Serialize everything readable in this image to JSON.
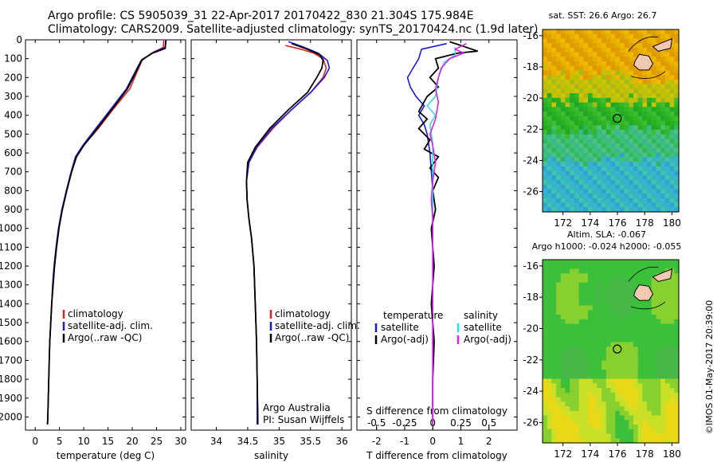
{
  "header": {
    "line1": "Argo profile: CS 5905039_31 22-Apr-2017 20170422_830 21.304S 175.984E",
    "line2": "Climatology: CARS2009. Satellite-adjusted climatology: synTS_20170424.nc (1.9d later)"
  },
  "colors": {
    "climatology": "#e02020",
    "satellite": "#1a1adc",
    "argo": "#000000",
    "sal_satellite": "#33dddd",
    "sal_argo": "#e020e0"
  },
  "chart_data": [
    {
      "type": "line",
      "name": "temperature-profile",
      "xlabel": "temperature (deg C)",
      "ylabel": "",
      "xlim": [
        -2,
        31
      ],
      "ylim": [
        2070,
        0
      ],
      "x_ticks": [
        0,
        5,
        10,
        15,
        20,
        25,
        30
      ],
      "y_ticks": [
        0,
        100,
        200,
        300,
        400,
        500,
        600,
        700,
        800,
        900,
        1000,
        1100,
        1200,
        1300,
        1400,
        1500,
        1600,
        1700,
        1800,
        1900,
        2000
      ],
      "legend": [
        "climatology",
        "satellite-adj. clim.",
        "Argo(..raw -QC)"
      ],
      "series": [
        {
          "name": "climatology",
          "color_key": "climatology",
          "points": [
            [
              26.5,
              0
            ],
            [
              26.4,
              40
            ],
            [
              24,
              70
            ],
            [
              22,
              110
            ],
            [
              20.5,
              200
            ],
            [
              19.5,
              260
            ],
            [
              16,
              370
            ],
            [
              13,
              470
            ],
            [
              10,
              560
            ],
            [
              8.5,
              620
            ],
            [
              7.5,
              700
            ],
            [
              6.5,
              800
            ],
            [
              5.5,
              900
            ],
            [
              4.8,
              1000
            ],
            [
              4.3,
              1100
            ],
            [
              3.9,
              1200
            ],
            [
              3.6,
              1300
            ],
            [
              3.4,
              1400
            ],
            [
              3.2,
              1500
            ],
            [
              3.0,
              1600
            ],
            [
              2.9,
              1700
            ],
            [
              2.8,
              1800
            ],
            [
              2.7,
              1900
            ],
            [
              2.6,
              2000
            ],
            [
              2.5,
              2040
            ]
          ]
        },
        {
          "name": "satellite-adj. clim.",
          "color_key": "satellite",
          "points": [
            [
              27,
              0
            ],
            [
              26.8,
              40
            ],
            [
              24.5,
              65
            ],
            [
              21.8,
              110
            ],
            [
              20,
              200
            ],
            [
              18.8,
              260
            ],
            [
              15.5,
              370
            ],
            [
              12.5,
              470
            ],
            [
              9.8,
              560
            ],
            [
              8.3,
              620
            ],
            [
              7.4,
              700
            ],
            [
              6.4,
              800
            ],
            [
              5.5,
              900
            ],
            [
              4.8,
              1000
            ],
            [
              4.3,
              1100
            ],
            [
              3.9,
              1200
            ],
            [
              3.6,
              1300
            ],
            [
              3.4,
              1400
            ],
            [
              3.2,
              1500
            ],
            [
              3.0,
              1600
            ],
            [
              2.9,
              1700
            ],
            [
              2.8,
              1800
            ],
            [
              2.7,
              1900
            ],
            [
              2.6,
              2000
            ],
            [
              2.55,
              2040
            ]
          ]
        },
        {
          "name": "Argo(..raw -QC)",
          "color_key": "argo",
          "points": [
            [
              26.9,
              5
            ],
            [
              26.8,
              45
            ],
            [
              24.2,
              70
            ],
            [
              22,
              105
            ],
            [
              20.2,
              200
            ],
            [
              19,
              260
            ],
            [
              15.8,
              370
            ],
            [
              12.8,
              470
            ],
            [
              10,
              560
            ],
            [
              8.5,
              620
            ],
            [
              7.5,
              700
            ],
            [
              6.5,
              800
            ],
            [
              5.6,
              900
            ],
            [
              4.9,
              1000
            ],
            [
              4.4,
              1100
            ],
            [
              4.0,
              1200
            ],
            [
              3.7,
              1300
            ],
            [
              3.4,
              1400
            ],
            [
              3.2,
              1500
            ],
            [
              3.0,
              1600
            ],
            [
              2.9,
              1700
            ],
            [
              2.8,
              1800
            ],
            [
              2.7,
              1900
            ],
            [
              2.6,
              2000
            ],
            [
              2.55,
              2040
            ]
          ]
        }
      ]
    },
    {
      "type": "line",
      "name": "salinity-profile",
      "xlabel": "salinity",
      "xlim": [
        33.6,
        36.15
      ],
      "ylim": [
        2070,
        0
      ],
      "x_ticks": [
        34,
        34.5,
        35,
        35.5,
        36
      ],
      "legend": [
        "climatology",
        "satellite-adj. clim.",
        "Argo(..raw -QC)"
      ],
      "annotation": [
        "Argo Australia",
        "PI: Susan Wijffels"
      ],
      "series": [
        {
          "name": "climatology",
          "color_key": "climatology",
          "points": [
            [
              35.1,
              30
            ],
            [
              35.35,
              50
            ],
            [
              35.55,
              70
            ],
            [
              35.7,
              100
            ],
            [
              35.75,
              150
            ],
            [
              35.7,
              200
            ],
            [
              35.5,
              280
            ],
            [
              35.2,
              370
            ],
            [
              34.9,
              470
            ],
            [
              34.65,
              570
            ],
            [
              34.52,
              650
            ],
            [
              34.48,
              750
            ],
            [
              34.49,
              850
            ],
            [
              34.52,
              950
            ],
            [
              34.56,
              1050
            ],
            [
              34.6,
              1200
            ],
            [
              34.62,
              1400
            ],
            [
              34.64,
              1600
            ],
            [
              34.65,
              1800
            ],
            [
              34.66,
              2000
            ],
            [
              34.66,
              2040
            ]
          ]
        },
        {
          "name": "satellite-adj. clim.",
          "color_key": "satellite",
          "points": [
            [
              35.15,
              10
            ],
            [
              35.4,
              40
            ],
            [
              35.62,
              70
            ],
            [
              35.77,
              110
            ],
            [
              35.8,
              150
            ],
            [
              35.72,
              200
            ],
            [
              35.5,
              280
            ],
            [
              35.2,
              370
            ],
            [
              34.88,
              470
            ],
            [
              34.64,
              570
            ],
            [
              34.52,
              650
            ],
            [
              34.48,
              750
            ],
            [
              34.49,
              850
            ],
            [
              34.52,
              950
            ],
            [
              34.56,
              1050
            ],
            [
              34.6,
              1200
            ],
            [
              34.62,
              1400
            ],
            [
              34.64,
              1600
            ],
            [
              34.65,
              1800
            ],
            [
              34.65,
              2000
            ],
            [
              34.65,
              2040
            ]
          ]
        },
        {
          "name": "Argo(..raw -QC)",
          "color_key": "argo",
          "points": [
            [
              35.2,
              20
            ],
            [
              35.45,
              50
            ],
            [
              35.65,
              80
            ],
            [
              35.7,
              110
            ],
            [
              35.68,
              150
            ],
            [
              35.6,
              200
            ],
            [
              35.45,
              280
            ],
            [
              35.15,
              370
            ],
            [
              34.85,
              470
            ],
            [
              34.62,
              570
            ],
            [
              34.5,
              650
            ],
            [
              34.48,
              750
            ],
            [
              34.49,
              850
            ],
            [
              34.52,
              950
            ],
            [
              34.56,
              1050
            ],
            [
              34.6,
              1200
            ],
            [
              34.62,
              1400
            ],
            [
              34.64,
              1600
            ],
            [
              34.65,
              1800
            ],
            [
              34.66,
              2000
            ],
            [
              34.66,
              2040
            ]
          ]
        }
      ]
    },
    {
      "type": "line",
      "name": "difference-profile",
      "xlabel": "T difference from climatology",
      "xlabel_top": "S difference from climatology",
      "xlim": [
        -2.7,
        3.0
      ],
      "ylim": [
        2070,
        0
      ],
      "x_ticks": [
        -2,
        -1,
        0,
        1,
        2
      ],
      "s_ticks": [
        -0.5,
        -0.25,
        0,
        0.25,
        0.5
      ],
      "s_scale": 4,
      "legend_temperature": {
        "title": "temperature",
        "items": [
          "satellite",
          "Argo(-adj)"
        ]
      },
      "legend_salinity": {
        "title": "salinity",
        "items": [
          "satellite",
          "Argo(-adj)"
        ]
      },
      "series": [
        {
          "name": "temperature satellite",
          "color_key": "satellite",
          "points": [
            [
              0.5,
              20
            ],
            [
              -0.4,
              50
            ],
            [
              -0.5,
              100
            ],
            [
              -0.7,
              150
            ],
            [
              -0.9,
              200
            ],
            [
              -0.8,
              250
            ],
            [
              -0.6,
              300
            ],
            [
              -0.3,
              350
            ],
            [
              -0.5,
              400
            ],
            [
              -0.3,
              450
            ],
            [
              -0.2,
              500
            ],
            [
              -0.1,
              600
            ],
            [
              0,
              800
            ],
            [
              0,
              2040
            ]
          ]
        },
        {
          "name": "temperature Argo(-adj)",
          "color_key": "argo",
          "points": [
            [
              0.6,
              10
            ],
            [
              1.6,
              60
            ],
            [
              0.9,
              70
            ],
            [
              0.1,
              100
            ],
            [
              0.2,
              150
            ],
            [
              -0.1,
              200
            ],
            [
              0.2,
              250
            ],
            [
              -0.2,
              300
            ],
            [
              -0.5,
              380
            ],
            [
              -0.2,
              420
            ],
            [
              -0.5,
              470
            ],
            [
              -0.1,
              530
            ],
            [
              -0.3,
              580
            ],
            [
              0.2,
              620
            ],
            [
              -0.1,
              680
            ],
            [
              0.2,
              730
            ],
            [
              0.0,
              800
            ],
            [
              0.1,
              900
            ],
            [
              -0.05,
              1000
            ],
            [
              0.05,
              1200
            ],
            [
              -0.05,
              1400
            ],
            [
              0.05,
              1600
            ],
            [
              0,
              1800
            ],
            [
              0,
              2040
            ]
          ]
        },
        {
          "name": "salinity satellite",
          "color_key": "sal_satellite",
          "points": [
            [
              0.8,
              40
            ],
            [
              0.8,
              80
            ],
            [
              0.4,
              120
            ],
            [
              0.2,
              200
            ],
            [
              0.1,
              300
            ],
            [
              -0.2,
              350
            ],
            [
              0.1,
              400
            ],
            [
              -0.1,
              450
            ],
            [
              0,
              550
            ],
            [
              0,
              2040
            ]
          ]
        },
        {
          "name": "salinity Argo(-adj)",
          "color_key": "sal_argo",
          "points": [
            [
              1.2,
              20
            ],
            [
              0.8,
              50
            ],
            [
              1.1,
              70
            ],
            [
              0.6,
              100
            ],
            [
              0.3,
              150
            ],
            [
              0.2,
              200
            ],
            [
              0.1,
              260
            ],
            [
              0.2,
              330
            ],
            [
              0.1,
              420
            ],
            [
              -0.1,
              500
            ],
            [
              0,
              560
            ],
            [
              0.1,
              650
            ],
            [
              0,
              750
            ],
            [
              -0.05,
              850
            ],
            [
              0,
              950
            ],
            [
              0,
              2040
            ]
          ]
        }
      ]
    },
    {
      "type": "heatmap",
      "name": "sst-map",
      "title": "sat. SST: 26.6  Argo: 26.7",
      "xlim": [
        170.5,
        180.5
      ],
      "ylim": [
        -27.3,
        -15.6
      ],
      "x_ticks": [
        172,
        174,
        176,
        178,
        180
      ],
      "y_ticks": [
        -16,
        -18,
        -20,
        -22,
        -24,
        -26
      ],
      "marker": {
        "lon": 175.984,
        "lat": -21.304
      }
    },
    {
      "type": "heatmap",
      "name": "sla-map",
      "title_lines": [
        "Altim. SLA: -0.067",
        "Argo h1000: -0.024  h2000: -0.055"
      ],
      "xlim": [
        170.5,
        180.5
      ],
      "ylim": [
        -27.3,
        -15.6
      ],
      "x_ticks": [
        172,
        174,
        176,
        178,
        180
      ],
      "y_ticks": [
        -16,
        -18,
        -20,
        -22,
        -24,
        -26
      ],
      "marker": {
        "lon": 175.984,
        "lat": -21.304
      }
    }
  ],
  "credit": "©IMOS 01-May-2017 20:39:00"
}
